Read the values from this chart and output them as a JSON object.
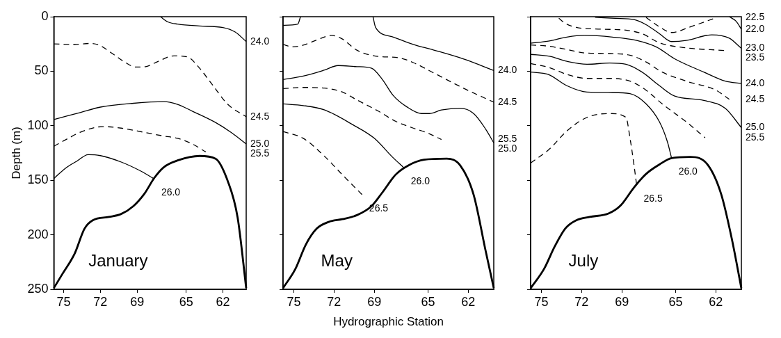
{
  "chart_data": [
    {
      "type": "line",
      "ylabel": "Depth (m)",
      "annotations": [
        "January"
      ],
      "xlim": [
        75.8,
        60.1
      ],
      "xticks": [
        75,
        72,
        69,
        65,
        62
      ],
      "ylim": [
        250,
        0
      ],
      "yticks": [
        0,
        50,
        100,
        150,
        200,
        250
      ],
      "marker": "none",
      "series": [
        {
          "name": "24.0",
          "color": "#000000",
          "line_style": "solid",
          "x": [
            67.1,
            66.5,
            65.7,
            63.9,
            62.0,
            61.0,
            60.1
          ],
          "values": [
            0,
            4.8,
            6.8,
            8.5,
            9.9,
            14,
            22.8
          ]
        },
        {
          "name": "24.5",
          "color": "#000000",
          "line_style": "dashed",
          "x": [
            75.8,
            74.1,
            72.8,
            72.1,
            70.9,
            70.1,
            69.1,
            68.3,
            67.3,
            66.0,
            64.9,
            63.9,
            62.9,
            61.6,
            60.1
          ],
          "values": [
            24.9,
            25.5,
            24.5,
            26.1,
            34.8,
            41,
            46.2,
            45.8,
            41,
            35.9,
            36.9,
            47.3,
            61.8,
            80.4,
            91.8
          ]
        },
        {
          "name": "25.0",
          "color": "#000000",
          "line_style": "solid",
          "x": [
            75.8,
            73.6,
            72.0,
            69.3,
            66.8,
            65.7,
            64.5,
            62.6,
            61.3,
            60.1
          ],
          "values": [
            94.3,
            87.7,
            82.9,
            79.4,
            77.9,
            80.4,
            86.6,
            97,
            106.3,
            116.7
          ]
        },
        {
          "name": "25.5",
          "color": "#000000",
          "line_style": "dashed",
          "x": [
            75.8,
            74.8,
            73.5,
            71.8,
            70.3,
            68.3,
            66.8,
            65.7,
            64.5,
            63.4
          ],
          "values": [
            118.8,
            112.6,
            105.3,
            100.8,
            102.2,
            106.3,
            109.5,
            111.5,
            116.7,
            124
          ]
        },
        {
          "name": "26.0",
          "color": "#000000",
          "line_style": "solid",
          "x": [
            75.8,
            74.8,
            73.9,
            73.0,
            72.0,
            70.3,
            68.7,
            67.6
          ],
          "values": [
            148.4,
            138.5,
            132.3,
            126.5,
            127.4,
            133.3,
            141.6,
            148.8
          ]
        },
        {
          "color": "#000000",
          "line_style": "solid",
          "x": [
            75.8,
            75.1,
            74.1,
            73.3,
            72.6,
            71.3,
            70.3,
            69.3,
            68.4,
            67.6,
            66.8,
            65.7,
            63.9,
            62.6,
            61.6,
            60.8,
            60.1
          ],
          "values": [
            248.8,
            235.9,
            217.2,
            194.4,
            186.5,
            183.6,
            180.9,
            173.6,
            162.2,
            147.8,
            137.8,
            131.8,
            127.7,
            130.2,
            150.9,
            184.1,
            248.8
          ]
        }
      ]
    },
    {
      "type": "line",
      "xlabel": "Hydrographic Station",
      "annotations": [
        "May"
      ],
      "tick_labels": "x",
      "xlim": [
        75.8,
        60.1
      ],
      "xticks": [
        75,
        72,
        69,
        65,
        62
      ],
      "ylim": [
        250,
        0
      ],
      "yticks": [
        0,
        50,
        100,
        150,
        200,
        250
      ],
      "marker": "none",
      "series": [
        {
          "color": "#000000",
          "line_style": "solid",
          "x": [
            75.8,
            74.7,
            74.5
          ],
          "values": [
            7.9,
            6.8,
            0
          ]
        },
        {
          "name": "24.0",
          "color": "#000000",
          "line_style": "solid",
          "x": [
            69.1,
            68.9,
            67.7,
            66.1,
            64.6,
            62.3,
            60.1
          ],
          "values": [
            0,
            10,
            18.2,
            25.4,
            30.5,
            39,
            49.3
          ]
        },
        {
          "name": "24.5",
          "color": "#000000",
          "line_style": "dashed",
          "x": [
            75.8,
            75.1,
            74.3,
            73.3,
            72.2,
            71.4,
            70.3,
            69.0,
            67.1,
            66.1,
            64.6,
            62.3,
            60.1
          ],
          "values": [
            25.5,
            27.6,
            26.1,
            21.4,
            17.2,
            20.3,
            30.7,
            35.9,
            37.9,
            42.1,
            51.4,
            65.9,
            78.4
          ]
        },
        {
          "name": "25.0",
          "color": "#000000",
          "line_style": "solid",
          "x": [
            75.8,
            74.3,
            72.7,
            71.7,
            70.3,
            69.2,
            68.4,
            67.6,
            66.6,
            65.5,
            64.9,
            64.0,
            62.6,
            61.6,
            60.7,
            60.1
          ],
          "values": [
            57.6,
            54.5,
            48.9,
            44.8,
            45.8,
            47.3,
            57.6,
            72.1,
            82.5,
            88.8,
            88.8,
            85.6,
            84,
            88.8,
            103.2,
            115.7
          ]
        },
        {
          "name": "25.5",
          "color": "#000000",
          "line_style": "dashed",
          "x": [
            75.8,
            74.3,
            72.7,
            71.4,
            70.3,
            68.7,
            67.4,
            66.1,
            65.1,
            64.0
          ],
          "values": [
            65.9,
            64.9,
            65.5,
            69,
            76.3,
            86.6,
            96,
            102.2,
            106.3,
            112.6
          ]
        },
        {
          "name": "26.0",
          "color": "#000000",
          "line_style": "solid",
          "x": [
            75.8,
            74.3,
            72.7,
            70.6,
            69.0,
            67.7,
            66.8
          ],
          "values": [
            80,
            81.5,
            85.6,
            99.1,
            111.5,
            128.1,
            138.5
          ]
        },
        {
          "name": "26.5",
          "color": "#000000",
          "line_style": "dashed",
          "x": [
            75.8,
            74.3,
            72.7,
            71.4,
            69.9
          ],
          "values": [
            105.3,
            111.5,
            128.1,
            144.7,
            163.3
          ]
        },
        {
          "color": "#000000",
          "line_style": "solid",
          "x": [
            75.8,
            74.9,
            74.1,
            73.3,
            72.4,
            71.4,
            70.3,
            69.2,
            68.4,
            67.4,
            66.4,
            65.3,
            63.6,
            62.6,
            61.6,
            60.7,
            60.1
          ],
          "values": [
            248.8,
            231.8,
            208.9,
            194.4,
            188.2,
            185.7,
            182,
            173.6,
            161.2,
            144.7,
            136,
            131.2,
            130.2,
            136.4,
            163.3,
            215.1,
            248.8
          ]
        }
      ]
    },
    {
      "type": "line",
      "annotations": [
        "July"
      ],
      "tick_labels": "x",
      "xlim": [
        75.8,
        60.1
      ],
      "xticks": [
        75,
        72,
        69,
        65,
        62
      ],
      "ylim": [
        250,
        0
      ],
      "yticks": [
        0,
        50,
        100,
        150,
        200,
        250
      ],
      "marker": "none",
      "series": [
        {
          "name": "22.0",
          "color": "#000000",
          "line_style": "solid",
          "x": [
            61.0,
            60.5,
            60.1
          ],
          "values": [
            0,
            4.1,
            11.4
          ]
        },
        {
          "name": "22.5",
          "color": "#000000",
          "line_style": "dashed",
          "x": [
            67.2,
            66.2,
            65.3,
            63.9,
            62.0
          ],
          "values": [
            0.6,
            9.3,
            14.5,
            9.3,
            1
          ]
        },
        {
          "name": "23.0",
          "color": "#000000",
          "line_style": "solid",
          "x": [
            71.0,
            69.5,
            68.1,
            67.2,
            66.2,
            65.3,
            64.2,
            62.3,
            61.0,
            60.1
          ],
          "values": [
            0.6,
            1.5,
            2.7,
            7.3,
            15.6,
            22.8,
            21.8,
            16.6,
            19.7,
            29
          ]
        },
        {
          "name": "23.5",
          "color": "#000000",
          "line_style": "dashed",
          "x": [
            73.7,
            73.2,
            72.4,
            70.6,
            68.7,
            67.5,
            66.2,
            64.6,
            61.3
          ],
          "values": [
            1.5,
            6.2,
            9.8,
            11.4,
            12.4,
            15.6,
            23.9,
            28,
            31.1
          ]
        },
        {
          "name": "24.0",
          "color": "#000000",
          "line_style": "solid",
          "x": [
            75.8,
            74.4,
            73.1,
            71.8,
            69.7,
            67.9,
            66.4,
            65.1,
            62.9,
            61.3,
            60.1
          ],
          "values": [
            24.3,
            22.2,
            18.7,
            17.2,
            18.7,
            21.8,
            28,
            38.4,
            50.8,
            59.1,
            61.2
          ]
        },
        {
          "name": "24.5",
          "color": "#000000",
          "line_style": "dashed",
          "x": [
            75.8,
            74.5,
            73.1,
            71.8,
            69.9,
            68.4,
            67.2,
            66.0,
            64.2,
            62.0,
            61.0
          ],
          "values": [
            25.9,
            27,
            30.1,
            33.2,
            33.8,
            35.3,
            41.5,
            50.8,
            59.1,
            67.4,
            75.7
          ]
        },
        {
          "name": "25.0",
          "color": "#000000",
          "line_style": "solid",
          "x": [
            75.8,
            74.4,
            73.1,
            71.6,
            69.9,
            68.7,
            67.5,
            66.2,
            65.1,
            62.9,
            61.3,
            60.1
          ],
          "values": [
            34.6,
            36.3,
            40.9,
            43.6,
            42.5,
            43.6,
            50.8,
            63.3,
            72.6,
            76.8,
            84,
            101.7
          ]
        },
        {
          "name": "25.5",
          "color": "#000000",
          "line_style": "dashed",
          "x": [
            75.8,
            74.4,
            73.1,
            71.6,
            69.9,
            68.4,
            67.2,
            66.0,
            64.2,
            62.8
          ],
          "values": [
            42.9,
            46.7,
            52.9,
            56.6,
            56.6,
            59.1,
            67.4,
            79.9,
            96.5,
            111
          ]
        },
        {
          "name": "26.0",
          "color": "#000000",
          "line_style": "solid",
          "x": [
            75.8,
            74.5,
            73.1,
            71.6,
            69.7,
            68.4,
            67.2,
            66.2,
            65.6,
            65.3
          ],
          "values": [
            50.8,
            52.9,
            63.3,
            69.1,
            69.5,
            70.5,
            79.9,
            96.5,
            115.1,
            129.7
          ]
        },
        {
          "name": "26.5",
          "color": "#000000",
          "line_style": "dashed",
          "x": [
            75.8,
            74.4,
            73.1,
            71.6,
            69.9,
            68.7,
            68.4,
            68.1,
            67.9
          ],
          "values": [
            134.2,
            121.4,
            104.8,
            92.3,
            88.8,
            92.3,
            111,
            135.9,
            154.6
          ]
        },
        {
          "color": "#000000",
          "line_style": "solid",
          "x": [
            75.8,
            74.8,
            74.0,
            73.2,
            72.4,
            71.4,
            70.0,
            69.1,
            68.1,
            67.2,
            66.2,
            65.3,
            63.9,
            62.6,
            61.6,
            60.8,
            60.1
          ],
          "values": [
            249,
            231.3,
            210.6,
            194,
            186.7,
            183.6,
            180.5,
            173.2,
            156.6,
            144.2,
            135.5,
            129.7,
            128.6,
            135.9,
            162.9,
            204.4,
            249
          ]
        }
      ]
    }
  ]
}
